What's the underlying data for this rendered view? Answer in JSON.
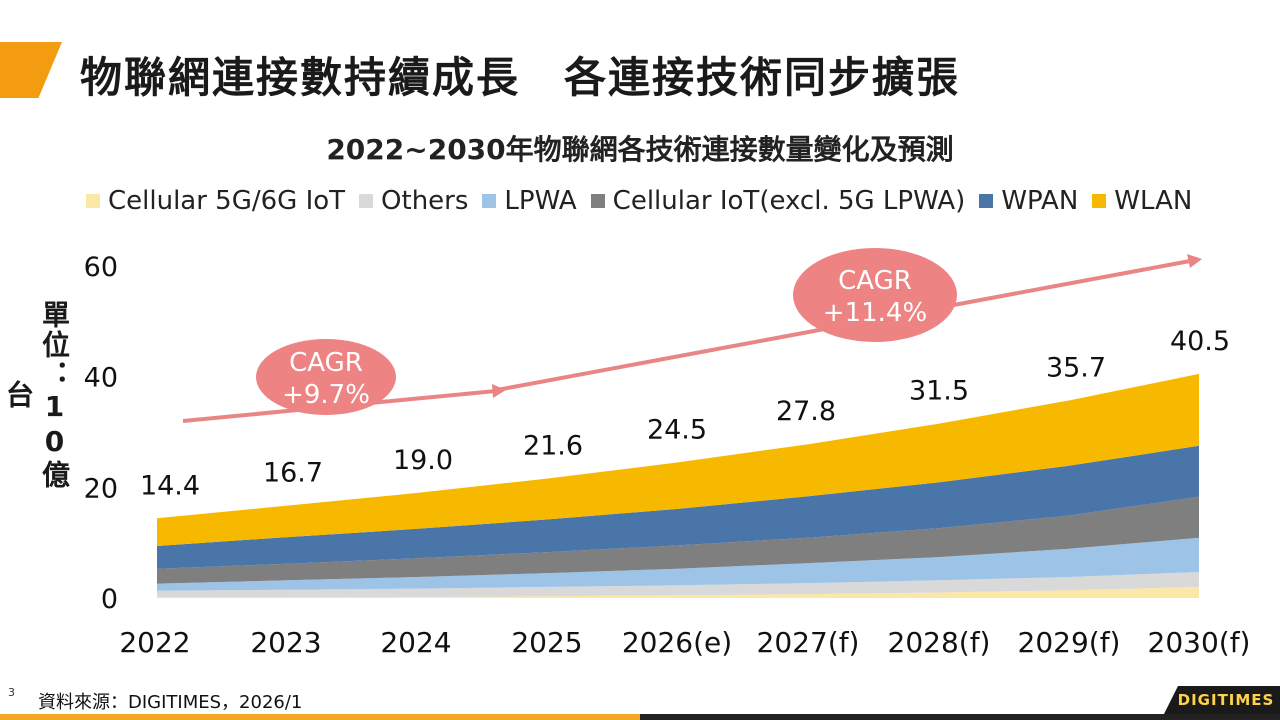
{
  "slide": {
    "title": "物聯網連接數持續成長　各連接技術同步擴張",
    "unit": "單位：10億台",
    "source": "資料來源：DIGITIMES，2026/1",
    "page_number": "3",
    "logo": "DIGITIMES"
  },
  "colors": {
    "accent": "#f39c12",
    "cagr_bubble": "#ee8383",
    "trend_arrow": "#e98585"
  },
  "chart_data": {
    "type": "area",
    "stacked": true,
    "title": "2022~2030年物聯網各技術連接數量變化及預測",
    "categories": [
      "2022",
      "2023",
      "2024",
      "2025",
      "2026(e)",
      "2027(f)",
      "2028(f)",
      "2029(f)",
      "2030(f)"
    ],
    "totals": [
      "14.4",
      "16.7",
      "19.0",
      "21.6",
      "24.5",
      "27.8",
      "31.5",
      "35.7",
      "40.5"
    ],
    "ylim": [
      0,
      60
    ],
    "yticks": [
      "0",
      "20",
      "40",
      "60"
    ],
    "legend": [
      "Cellular 5G/6G IoT",
      "Others",
      "LPWA",
      "Cellular IoT(excl. 5G LPWA)",
      "WPAN",
      "WLAN"
    ],
    "series": [
      {
        "name": "Cellular 5G/6G IoT",
        "color": "#fbe7a8",
        "values": [
          0.1,
          0.1,
          0.2,
          0.3,
          0.5,
          0.7,
          1.0,
          1.4,
          2.0
        ]
      },
      {
        "name": "Others",
        "color": "#d9d9d9",
        "values": [
          1.2,
          1.4,
          1.5,
          1.7,
          1.8,
          2.0,
          2.2,
          2.4,
          2.7
        ]
      },
      {
        "name": "LPWA",
        "color": "#9dc3e6",
        "values": [
          1.3,
          1.7,
          2.1,
          2.5,
          3.0,
          3.6,
          4.2,
          5.1,
          6.2
        ]
      },
      {
        "name": "Cellular IoT(excl. 5G LPWA)",
        "color": "#7f7f7f",
        "values": [
          2.7,
          3.0,
          3.4,
          3.8,
          4.2,
          4.6,
          5.2,
          6.0,
          7.4
        ]
      },
      {
        "name": "WPAN",
        "color": "#4a75a8",
        "values": [
          4.1,
          4.8,
          5.3,
          5.9,
          6.6,
          7.5,
          8.3,
          9.0,
          9.2
        ]
      },
      {
        "name": "WLAN",
        "color": "#f7b900",
        "values": [
          5.0,
          5.7,
          6.5,
          7.4,
          8.4,
          9.4,
          10.6,
          11.8,
          13.0
        ]
      }
    ],
    "annotations": [
      {
        "label_line1": "CAGR",
        "label_line2": "+9.7%"
      },
      {
        "label_line1": "CAGR",
        "label_line2": "+11.4%"
      }
    ]
  }
}
